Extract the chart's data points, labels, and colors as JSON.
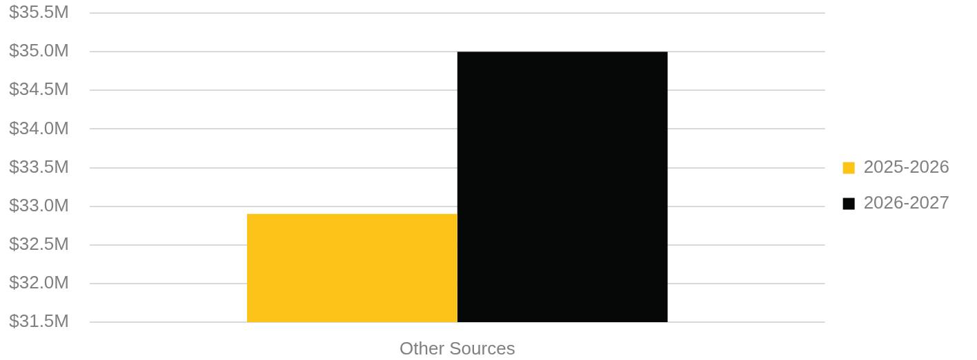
{
  "chart_data": {
    "type": "bar",
    "categories": [
      "Other Sources"
    ],
    "series": [
      {
        "name": "2025-2026",
        "color": "#fcc418",
        "values": [
          32.9
        ]
      },
      {
        "name": "2026-2027",
        "color": "#050807",
        "values": [
          35.0
        ]
      }
    ],
    "ylim": [
      31.5,
      35.5
    ],
    "yticks": [
      {
        "value": 31.5,
        "label": "$31.5M"
      },
      {
        "value": 32,
        "label": "$32.0M"
      },
      {
        "value": 32.5,
        "label": "$32.5M"
      },
      {
        "value": 33,
        "label": "$33.0M"
      },
      {
        "value": 33.5,
        "label": "$33.5M"
      },
      {
        "value": 34,
        "label": "$34.0M"
      },
      {
        "value": 34.5,
        "label": "$34.5M"
      },
      {
        "value": 35,
        "label": "$35.0M"
      },
      {
        "value": 35.5,
        "label": "$35.5M"
      }
    ],
    "grid": "y",
    "legend": "right"
  }
}
